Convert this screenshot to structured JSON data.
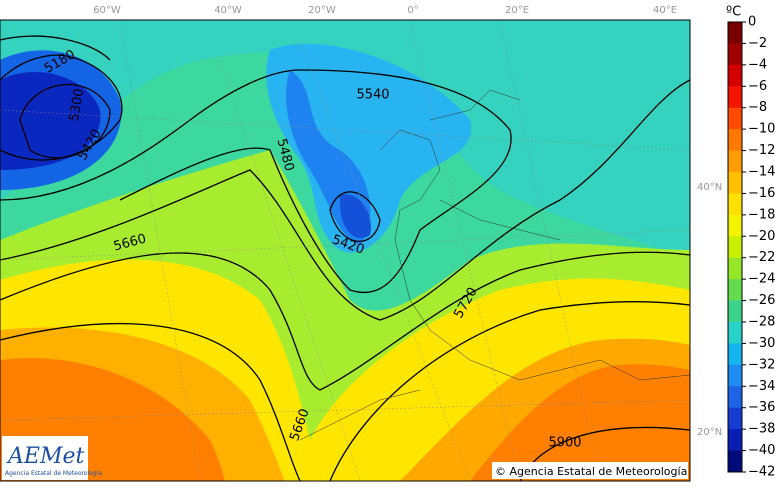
{
  "map": {
    "longitude_labels": [
      "60°W",
      "40°W",
      "20°W",
      "0°",
      "20°E",
      "40°E"
    ],
    "latitude_labels": [
      "40°N",
      "20°N"
    ],
    "contour_labels": [
      "5180",
      "5300",
      "5420",
      "5540",
      "5480",
      "5660",
      "5420",
      "5720",
      "5660",
      "5900"
    ],
    "copyright": "© Agencia Estatal de Meteorología",
    "logo": {
      "name": "AEMet",
      "subtitle": "Agencia Estatal de Meteorología"
    }
  },
  "colorbar": {
    "unit": "ºC",
    "labels": [
      "0",
      "−2",
      "−4",
      "−6",
      "−8",
      "−10",
      "−12",
      "−14",
      "−16",
      "−18",
      "−20",
      "−22",
      "−24",
      "−26",
      "−28",
      "−30",
      "−32",
      "−34",
      "−36",
      "−38",
      "−40",
      "−42"
    ],
    "colors": [
      "#7a0000",
      "#a00000",
      "#d40000",
      "#f41400",
      "#ff4a00",
      "#ff7800",
      "#ff9c00",
      "#ffbe00",
      "#ffe000",
      "#f4f400",
      "#c8f000",
      "#96e628",
      "#64dc50",
      "#3cd28c",
      "#28d2c8",
      "#14b4ee",
      "#1e8cf0",
      "#1e64e6",
      "#143cd2",
      "#0a1eb4",
      "#000a78"
    ]
  }
}
